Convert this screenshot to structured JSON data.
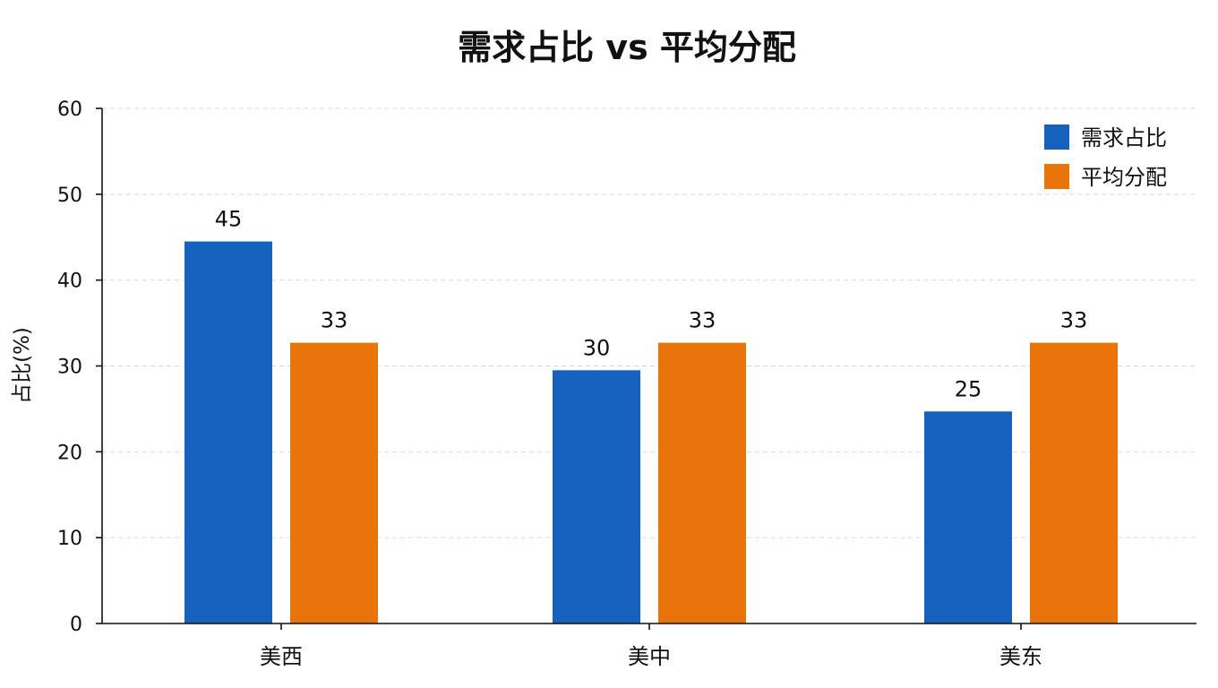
{
  "chart_data": {
    "type": "bar",
    "title": "需求占比 vs 平均分配",
    "xlabel": "",
    "ylabel": "占比(%)",
    "categories": [
      "美西",
      "美中",
      "美东"
    ],
    "series": [
      {
        "name": "需求占比",
        "color": "#1660be",
        "values": [
          44.5,
          29.5,
          24.7
        ],
        "labels": [
          "45",
          "30",
          "25"
        ]
      },
      {
        "name": "平均分配",
        "color": "#e8740a",
        "values": [
          32.7,
          32.7,
          32.7
        ],
        "labels": [
          "33",
          "33",
          "33"
        ]
      }
    ],
    "ylim": [
      0,
      60
    ],
    "yticks": [
      0,
      10,
      20,
      30,
      40,
      50,
      60
    ],
    "ytick_labels": [
      "0",
      "10",
      "20",
      "30",
      "40",
      "50",
      "60"
    ],
    "grid": true,
    "legend": "top-right"
  }
}
